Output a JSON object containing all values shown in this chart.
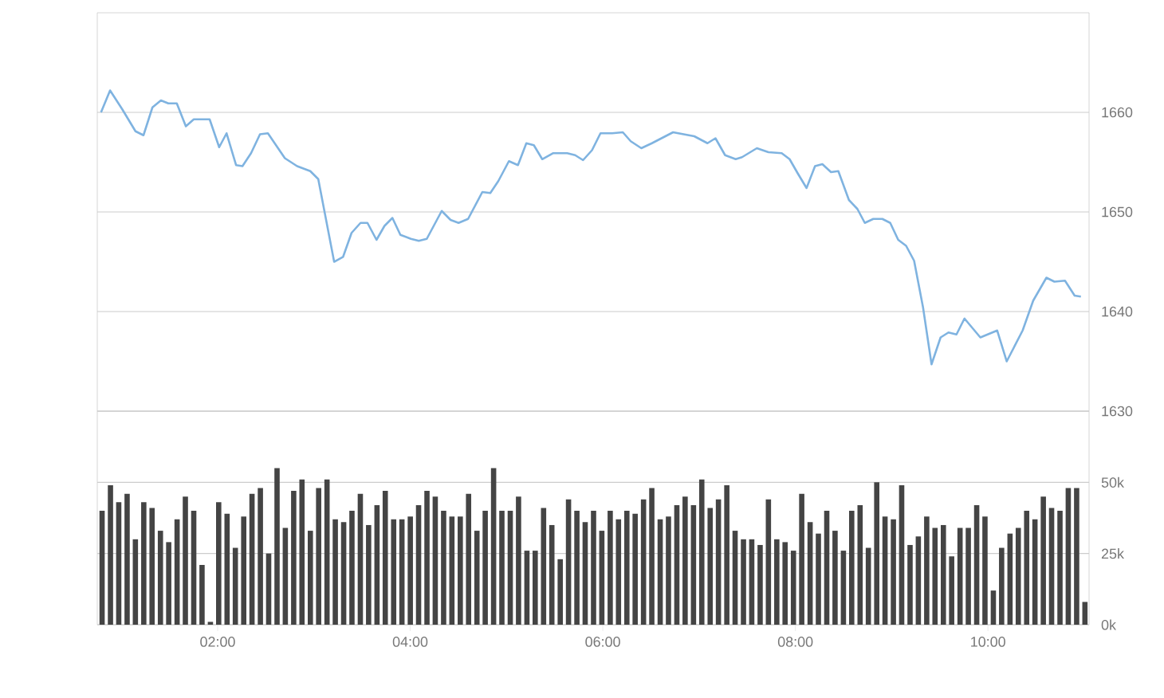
{
  "chart_data": [
    {
      "type": "line",
      "color": "#7fb3e0",
      "xlim": [
        0.75,
        11.05
      ],
      "ylim": [
        1630,
        1670
      ],
      "yticks": [
        1630,
        1640,
        1650,
        1660
      ],
      "grid": "y",
      "tick_labels": "y",
      "x": [
        0.789,
        0.883,
        1.01,
        1.147,
        1.23,
        1.323,
        1.411,
        1.488,
        1.576,
        1.67,
        1.752,
        1.835,
        1.917,
        2.016,
        2.093,
        2.192,
        2.258,
        2.347,
        2.44,
        2.522,
        2.698,
        2.825,
        2.962,
        3.045,
        3.21,
        3.303,
        3.391,
        3.484,
        3.556,
        3.65,
        3.733,
        3.815,
        3.898,
        4.007,
        4.089,
        4.172,
        4.327,
        4.419,
        4.502,
        4.601,
        4.749,
        4.832,
        4.915,
        5.025,
        5.119,
        5.206,
        5.284,
        5.371,
        5.482,
        5.63,
        5.713,
        5.795,
        5.888,
        5.976,
        6.097,
        6.208,
        6.29,
        6.4,
        6.51,
        6.73,
        6.95,
        7.087,
        7.17,
        7.27,
        7.38,
        7.446,
        7.6,
        7.72,
        7.858,
        7.94,
        8.023,
        8.116,
        8.204,
        8.28,
        8.37,
        8.446,
        8.556,
        8.644,
        8.721,
        8.809,
        8.903,
        8.985,
        9.068,
        9.15,
        9.233,
        9.326,
        9.414,
        9.508,
        9.59,
        9.673,
        9.756,
        9.921,
        10.096,
        10.195,
        10.36,
        10.47,
        10.607,
        10.69,
        10.8,
        10.9,
        10.965
      ],
      "values": [
        1660,
        1662.2,
        1660.3,
        1658.1,
        1657.7,
        1660.5,
        1661.2,
        1660.9,
        1660.9,
        1658.6,
        1659.3,
        1659.3,
        1659.3,
        1656.5,
        1657.9,
        1654.7,
        1654.6,
        1655.9,
        1657.8,
        1657.9,
        1655.4,
        1654.6,
        1654.1,
        1653.3,
        1645.0,
        1645.5,
        1647.9,
        1648.9,
        1648.9,
        1647.2,
        1648.6,
        1649.4,
        1647.7,
        1647.3,
        1647.1,
        1647.3,
        1650.1,
        1649.2,
        1648.9,
        1649.3,
        1652.0,
        1651.9,
        1653.1,
        1655.1,
        1654.7,
        1656.9,
        1656.7,
        1655.3,
        1655.9,
        1655.9,
        1655.7,
        1655.2,
        1656.2,
        1657.9,
        1657.9,
        1658.0,
        1657.1,
        1656.4,
        1656.9,
        1658.0,
        1657.6,
        1656.9,
        1657.4,
        1655.7,
        1655.3,
        1655.5,
        1656.4,
        1656.0,
        1655.9,
        1655.3,
        1653.9,
        1652.4,
        1654.6,
        1654.8,
        1654.0,
        1654.1,
        1651.2,
        1650.3,
        1648.9,
        1649.3,
        1649.3,
        1648.9,
        1647.2,
        1646.6,
        1645.1,
        1640.4,
        1634.7,
        1637.4,
        1637.9,
        1637.7,
        1639.3,
        1637.4,
        1638.1,
        1635.0,
        1638.1,
        1641.1,
        1643.4,
        1643.0,
        1643.1,
        1641.6,
        1641.5
      ]
    },
    {
      "type": "bar",
      "color": "#444444",
      "xlim": [
        0.75,
        11.05
      ],
      "ylim": [
        0,
        75
      ],
      "grid": "y",
      "xticks": [
        {
          "value": 2,
          "label": "02:00"
        },
        {
          "value": 4,
          "label": "04:00"
        },
        {
          "value": 6,
          "label": "06:00"
        },
        {
          "value": 8,
          "label": "08:00"
        },
        {
          "value": 10,
          "label": "10:00"
        }
      ],
      "yticks": [
        {
          "value": 0,
          "label": "0k"
        },
        {
          "value": 25,
          "label": "25k"
        },
        {
          "value": 50,
          "label": "50k"
        }
      ],
      "x": [
        0.8,
        0.887,
        0.973,
        1.06,
        1.146,
        1.233,
        1.319,
        1.406,
        1.492,
        1.579,
        1.665,
        1.752,
        1.838,
        1.925,
        2.011,
        2.098,
        2.184,
        2.271,
        2.357,
        2.444,
        2.53,
        2.617,
        2.703,
        2.79,
        2.876,
        2.963,
        3.049,
        3.136,
        3.222,
        3.309,
        3.395,
        3.482,
        3.568,
        3.655,
        3.741,
        3.828,
        3.914,
        4.001,
        4.087,
        4.174,
        4.26,
        4.347,
        4.433,
        4.52,
        4.606,
        4.693,
        4.779,
        4.866,
        4.952,
        5.039,
        5.125,
        5.212,
        5.298,
        5.385,
        5.471,
        5.558,
        5.644,
        5.731,
        5.817,
        5.904,
        5.99,
        6.077,
        6.163,
        6.25,
        6.336,
        6.423,
        6.509,
        6.596,
        6.682,
        6.769,
        6.855,
        6.942,
        7.028,
        7.115,
        7.201,
        7.288,
        7.374,
        7.461,
        7.547,
        7.634,
        7.72,
        7.807,
        7.893,
        7.98,
        8.066,
        8.153,
        8.239,
        8.326,
        8.412,
        8.499,
        8.585,
        8.672,
        8.758,
        8.845,
        8.931,
        9.018,
        9.104,
        9.191,
        9.277,
        9.364,
        9.45,
        9.537,
        9.623,
        9.71,
        9.796,
        9.883,
        9.969,
        10.056,
        10.142,
        10.229,
        10.315,
        10.402,
        10.488,
        10.575,
        10.661,
        10.748,
        10.834,
        10.921,
        11.007
      ],
      "values": [
        40,
        49,
        43,
        46,
        30,
        43,
        41,
        33,
        29,
        37,
        45,
        40,
        21,
        1,
        43,
        39,
        27,
        38,
        46,
        48,
        25,
        55,
        34,
        47,
        51,
        33,
        48,
        51,
        37,
        36,
        40,
        46,
        35,
        42,
        47,
        37,
        37,
        38,
        42,
        47,
        45,
        40,
        38,
        38,
        46,
        33,
        40,
        55,
        40,
        40,
        45,
        26,
        26,
        41,
        35,
        23,
        44,
        40,
        36,
        40,
        33,
        40,
        37,
        40,
        39,
        44,
        48,
        37,
        38,
        42,
        45,
        42,
        51,
        41,
        44,
        49,
        33,
        30,
        30,
        28,
        44,
        30,
        29,
        26,
        46,
        36,
        32,
        40,
        33,
        26,
        40,
        42,
        27,
        50,
        38,
        37,
        49,
        28,
        31,
        38,
        34,
        35,
        24,
        34,
        34,
        42,
        38,
        12,
        27,
        32,
        34,
        40,
        37,
        45,
        41,
        40,
        48,
        48,
        8
      ]
    }
  ]
}
